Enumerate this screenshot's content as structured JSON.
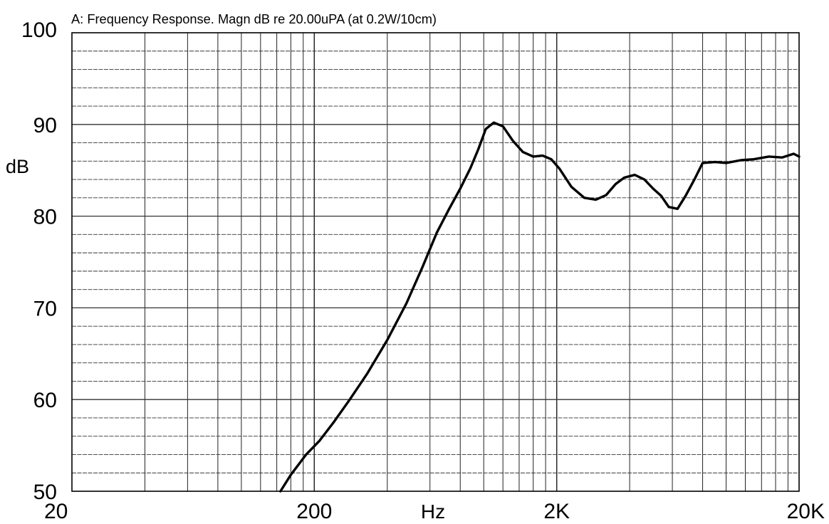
{
  "chart_data": {
    "type": "line",
    "title": "A: Frequency Response. Magn dB re 20.00uPA (at 0.2W/10cm)",
    "xlabel": "Hz",
    "ylabel": "dB",
    "x_scale": "log",
    "xlim": [
      20,
      20000
    ],
    "ylim": [
      50,
      100
    ],
    "x_tick_labels": [
      {
        "value": 20,
        "label": "20"
      },
      {
        "value": 200,
        "label": "200"
      },
      {
        "value": 2000,
        "label": "2K"
      },
      {
        "value": 20000,
        "label": "20K"
      }
    ],
    "y_ticks": [
      50,
      60,
      70,
      80,
      90,
      100
    ],
    "grid": true,
    "series": [
      {
        "color": "#000000",
        "x": [
          145,
          160,
          185,
          210,
          240,
          280,
          330,
          400,
          480,
          560,
          640,
          720,
          800,
          880,
          950,
          1020,
          1100,
          1200,
          1320,
          1450,
          1600,
          1750,
          1900,
          2050,
          2300,
          2600,
          2900,
          3200,
          3500,
          3800,
          4200,
          4600,
          5000,
          5400,
          5800,
          6300,
          6800,
          7400,
          8000,
          9000,
          10000,
          11500,
          13000,
          15000,
          17000,
          19000,
          20000
        ],
        "y": [
          50,
          51.8,
          54,
          55.5,
          57.5,
          60,
          62.8,
          66.5,
          70.5,
          74.5,
          78.2,
          80.8,
          83,
          85.2,
          87.3,
          89.5,
          90.2,
          89.8,
          88.2,
          87,
          86.5,
          86.6,
          86.2,
          85.2,
          83.2,
          82,
          81.8,
          82.3,
          83.5,
          84.2,
          84.5,
          84,
          83,
          82.2,
          81,
          80.8,
          82.2,
          84,
          85.8,
          85.9,
          85.8,
          86.1,
          86.2,
          86.5,
          86.4,
          86.8,
          86.5
        ]
      }
    ]
  }
}
